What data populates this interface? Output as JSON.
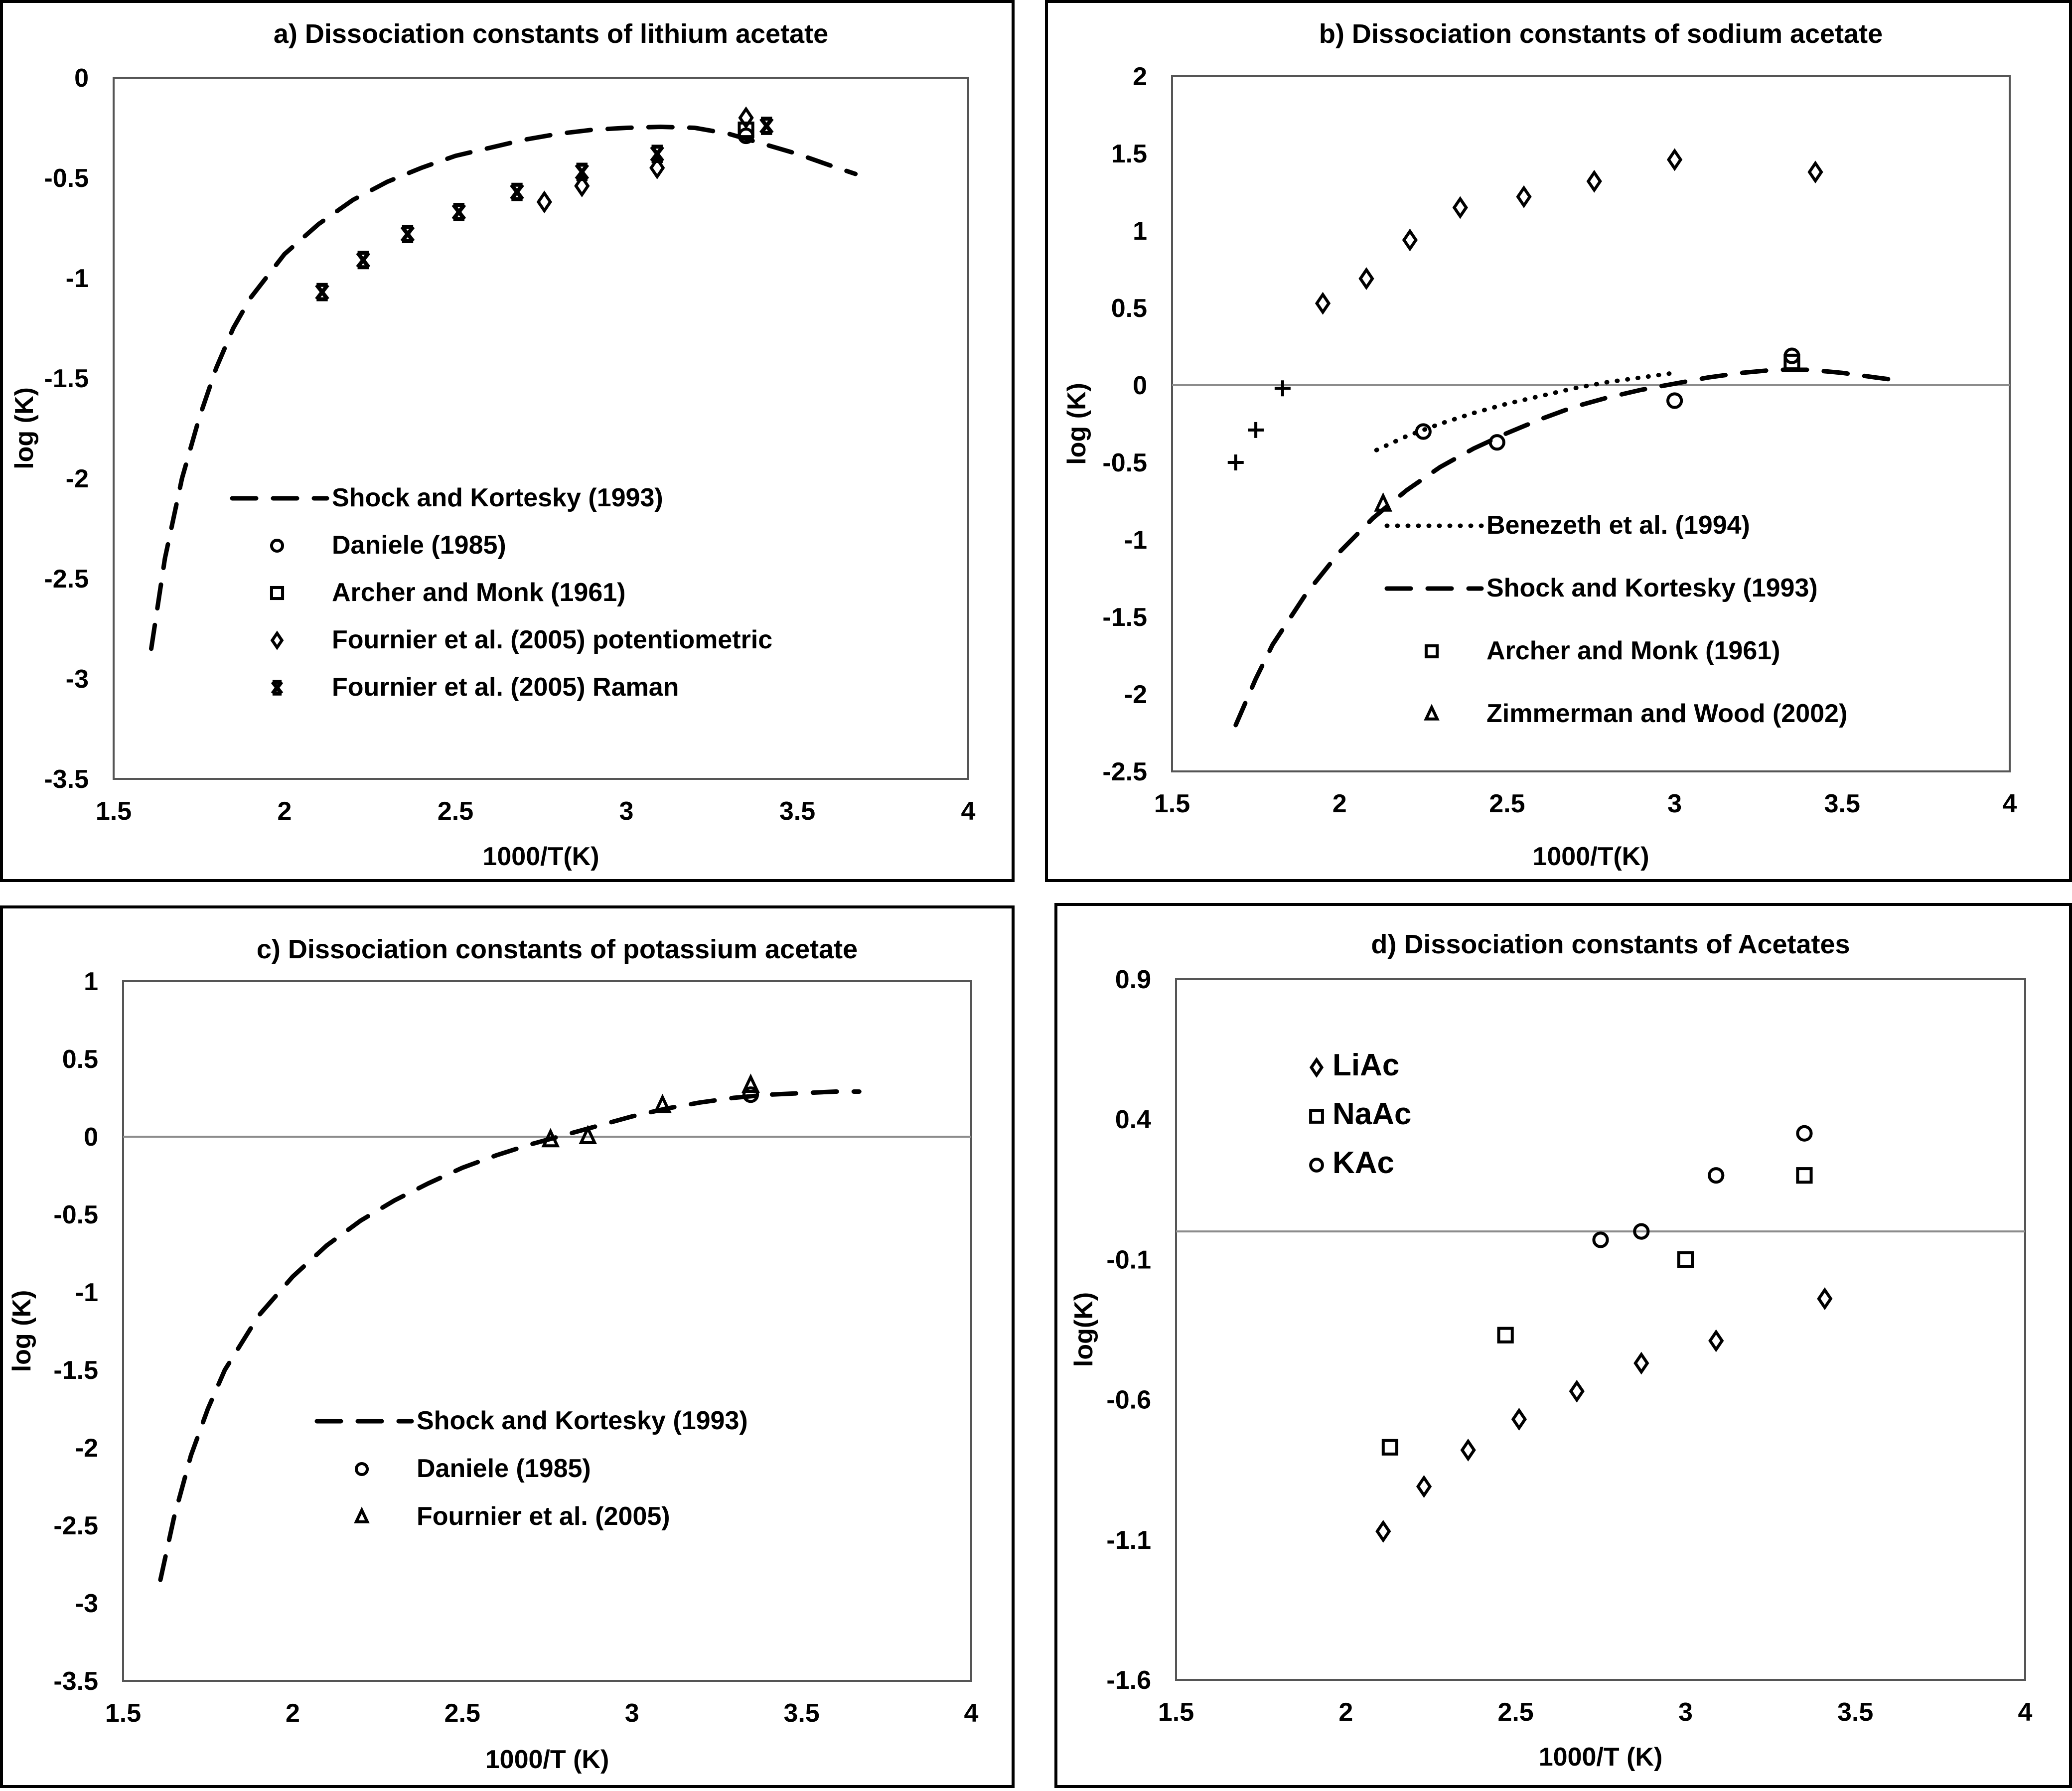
{
  "figure": {
    "panels": [
      "a",
      "b",
      "c",
      "d"
    ]
  },
  "chart_data": [
    {
      "id": "a",
      "type": "scatter",
      "title": "a) Dissociation constants of lithium acetate",
      "xlabel": "1000/T(K)",
      "ylabel": "log (K)",
      "xlim": [
        1.5,
        4
      ],
      "ylim": [
        -3.5,
        0
      ],
      "xticks": [
        "1.5",
        "2",
        "2.5",
        "3",
        "3.5",
        "4"
      ],
      "yticks": [
        "0",
        "-0.5",
        "-1",
        "-1.5",
        "-2",
        "-2.5",
        "-3",
        "-3.5"
      ],
      "zero_line": false,
      "legend_position": "center-right",
      "series": [
        {
          "name": "Shock and Kortesky (1993)",
          "style": "dashed-line",
          "x": [
            1.61,
            1.65,
            1.7,
            1.75,
            1.8,
            1.85,
            1.9,
            2.0,
            2.1,
            2.2,
            2.3,
            2.4,
            2.5,
            2.6,
            2.7,
            2.8,
            2.9,
            3.0,
            3.1,
            3.2,
            3.3,
            3.4,
            3.5,
            3.6,
            3.67
          ],
          "y": [
            -2.85,
            -2.4,
            -2.0,
            -1.7,
            -1.45,
            -1.25,
            -1.1,
            -0.88,
            -0.73,
            -0.61,
            -0.52,
            -0.45,
            -0.39,
            -0.35,
            -0.31,
            -0.28,
            -0.26,
            -0.25,
            -0.245,
            -0.25,
            -0.28,
            -0.33,
            -0.38,
            -0.44,
            -0.48
          ]
        },
        {
          "name": "Daniele (1985)",
          "marker": "circle",
          "x": [
            3.35
          ],
          "y": [
            -0.29
          ]
        },
        {
          "name": "Archer and Monk (1961)",
          "marker": "square",
          "x": [
            3.35
          ],
          "y": [
            -0.26
          ]
        },
        {
          "name": "Fournier et al. (2005) potentiometric",
          "marker": "diamond",
          "x": [
            2.76,
            2.87,
            3.09,
            3.35
          ],
          "y": [
            -0.62,
            -0.54,
            -0.45,
            -0.2
          ]
        },
        {
          "name": "Fournier et al. (2005) Raman",
          "marker": "star-cross",
          "x": [
            2.11,
            2.23,
            2.36,
            2.51,
            2.68,
            2.87,
            3.09,
            3.41
          ],
          "y": [
            -1.07,
            -0.91,
            -0.78,
            -0.67,
            -0.57,
            -0.47,
            -0.38,
            -0.24
          ]
        }
      ]
    },
    {
      "id": "b",
      "type": "scatter",
      "title": "b) Dissociation constants of sodium acetate",
      "xlabel": "1000/T(K)",
      "ylabel": "log (K)",
      "xlim": [
        1.5,
        4
      ],
      "ylim": [
        -2.5,
        2
      ],
      "xticks": [
        "1.5",
        "2",
        "2.5",
        "3",
        "3.5",
        "4"
      ],
      "yticks": [
        "2",
        "1.5",
        "1",
        "0.5",
        "0",
        "-0.5",
        "-1",
        "-1.5",
        "-2",
        "-2.5"
      ],
      "zero_line": true,
      "legend_position": "bottom-right",
      "series": [
        {
          "name": "Benezeth et al. (1994)",
          "style": "dotted-line",
          "x": [
            2.11,
            2.2,
            2.3,
            2.4,
            2.5,
            2.6,
            2.7,
            2.8,
            2.9,
            3.0
          ],
          "y": [
            -0.42,
            -0.33,
            -0.25,
            -0.18,
            -0.12,
            -0.07,
            -0.02,
            0.02,
            0.05,
            0.08
          ]
        },
        {
          "name": "Shock and Kortesky (1993)",
          "style": "dashed-line",
          "x": [
            1.69,
            1.75,
            1.8,
            1.9,
            2.0,
            2.1,
            2.2,
            2.3,
            2.4,
            2.5,
            2.6,
            2.7,
            2.8,
            2.9,
            3.0,
            3.1,
            3.2,
            3.3,
            3.4,
            3.5,
            3.6,
            3.67
          ],
          "y": [
            -2.2,
            -1.9,
            -1.68,
            -1.35,
            -1.08,
            -0.86,
            -0.68,
            -0.53,
            -0.41,
            -0.31,
            -0.22,
            -0.14,
            -0.08,
            -0.03,
            0.01,
            0.05,
            0.08,
            0.1,
            0.1,
            0.08,
            0.05,
            0.03
          ]
        },
        {
          "name": "Archer and Monk (1961)",
          "marker": "square",
          "x": [
            3.35
          ],
          "y": [
            0.15
          ]
        },
        {
          "name": "Zimmerman and Wood (2002)",
          "marker": "triangle",
          "x": [
            2.13
          ],
          "y": [
            -0.77
          ]
        },
        {
          "name": "",
          "marker": "circle",
          "legend": false,
          "x": [
            2.25,
            2.47,
            3.0,
            3.35
          ],
          "y": [
            -0.3,
            -0.37,
            -0.1,
            0.19
          ]
        },
        {
          "name": "",
          "marker": "diamond",
          "legend": false,
          "x": [
            1.95,
            2.08,
            2.21,
            2.36,
            2.55,
            2.76,
            3.0,
            3.42
          ],
          "y": [
            0.53,
            0.69,
            0.94,
            1.15,
            1.22,
            1.32,
            1.46,
            1.38
          ]
        },
        {
          "name": "",
          "marker": "plus",
          "legend": false,
          "x": [
            1.69,
            1.75,
            1.83
          ],
          "y": [
            -0.5,
            -0.29,
            -0.02
          ]
        }
      ]
    },
    {
      "id": "c",
      "type": "scatter",
      "title": "c) Dissociation constants of potassium acetate",
      "xlabel": "1000/T (K)",
      "ylabel": "log (K)",
      "xlim": [
        1.5,
        4
      ],
      "ylim": [
        -3.5,
        1
      ],
      "xticks": [
        "1.5",
        "2",
        "2.5",
        "3",
        "3.5",
        "4"
      ],
      "yticks": [
        "1",
        "0.5",
        "0",
        "-0.5",
        "-1",
        "-1.5",
        "-2",
        "-2.5",
        "-3",
        "-3.5"
      ],
      "zero_line": true,
      "legend_position": "center-right",
      "series": [
        {
          "name": "Shock and Kortesky (1993)",
          "style": "dashed-line",
          "x": [
            1.61,
            1.65,
            1.7,
            1.75,
            1.8,
            1.9,
            2.0,
            2.1,
            2.2,
            2.3,
            2.4,
            2.5,
            2.6,
            2.7,
            2.8,
            2.9,
            3.0,
            3.1,
            3.2,
            3.3,
            3.4,
            3.5,
            3.6,
            3.67
          ],
          "y": [
            -2.85,
            -2.45,
            -2.05,
            -1.75,
            -1.5,
            -1.15,
            -0.9,
            -0.7,
            -0.54,
            -0.41,
            -0.3,
            -0.2,
            -0.12,
            -0.05,
            0.01,
            0.07,
            0.13,
            0.18,
            0.22,
            0.25,
            0.27,
            0.28,
            0.29,
            0.29
          ]
        },
        {
          "name": "Daniele (1985)",
          "marker": "circle",
          "x": [
            3.35
          ],
          "y": [
            0.27
          ]
        },
        {
          "name": "Fournier et al. (2005)",
          "marker": "triangle",
          "x": [
            2.76,
            2.87,
            3.09,
            3.35
          ],
          "y": [
            -0.02,
            0.0,
            0.2,
            0.33
          ]
        }
      ]
    },
    {
      "id": "d",
      "type": "scatter",
      "title": "d) Dissociation constants of Acetates",
      "xlabel": "1000/T (K)",
      "ylabel": "log(K)",
      "xlim": [
        1.5,
        4
      ],
      "ylim": [
        -1.6,
        0.9
      ],
      "xticks": [
        "1.5",
        "2",
        "2.5",
        "3",
        "3.5",
        "4"
      ],
      "yticks": [
        "0.9",
        "0.4",
        "-0.1",
        "-0.6",
        "-1.1",
        "-1.6"
      ],
      "zero_line": true,
      "legend_position": "top-left",
      "series": [
        {
          "name": "LiAc",
          "marker": "diamond",
          "x": [
            2.11,
            2.23,
            2.36,
            2.51,
            2.68,
            2.87,
            3.09,
            3.41
          ],
          "y": [
            -1.07,
            -0.91,
            -0.78,
            -0.67,
            -0.57,
            -0.47,
            -0.39,
            -0.24
          ]
        },
        {
          "name": "NaAc",
          "marker": "square",
          "x": [
            2.13,
            2.47,
            3.0,
            3.35
          ],
          "y": [
            -0.77,
            -0.37,
            -0.1,
            0.2
          ]
        },
        {
          "name": "KAc",
          "marker": "circle",
          "x": [
            2.75,
            2.87,
            3.09,
            3.35
          ],
          "y": [
            -0.03,
            0.0,
            0.2,
            0.35
          ]
        }
      ]
    }
  ]
}
